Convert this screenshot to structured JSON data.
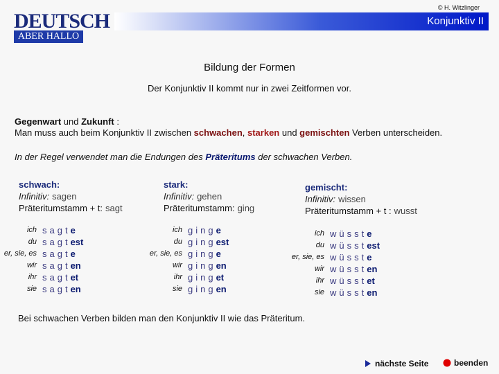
{
  "header": {
    "copyright": "© H. Witzlinger",
    "logo_title": "DEUTSCH",
    "logo_subtitle": "ABER HALLO",
    "title": "Konjunktiv II"
  },
  "heading": "Bildung der Formen",
  "intro": "Der Konjunktiv II kommt nur in zwei Zeitformen vor.",
  "section": {
    "line1": [
      "Gegenwart",
      " und ",
      "Zukunft",
      " :"
    ],
    "line2": [
      "Man muss auch beim Konjunktiv II zwischen ",
      "schwachen",
      ", ",
      "starken",
      " und ",
      "gemischten",
      " Verben unterscheiden."
    ]
  },
  "rule": [
    "In der Regel verwendet man die Endungen des ",
    "Präteritums",
    " der schwachen Verben."
  ],
  "columns": [
    {
      "title": "schwach:",
      "infinitive_label": "Infinitiv:",
      "infinitive": "sagen",
      "stem_label": "Präteritumstamm + t:",
      "stem": "sagt",
      "pronouns": [
        "ich",
        "du",
        "er, sie, es",
        "wir",
        "ihr",
        "sie"
      ],
      "table_stem": "sagt",
      "endings": [
        "e",
        "est",
        "e",
        "en",
        "et",
        "en"
      ]
    },
    {
      "title": "stark:",
      "infinitive_label": "Infinitiv:",
      "infinitive": "gehen",
      "stem_label": "Präteritumstamm:",
      "stem": "ging",
      "pronouns": [
        "ich",
        "du",
        "er, sie, es",
        "wir",
        "ihr",
        "sie"
      ],
      "table_stem": "ging",
      "endings": [
        "e",
        "est",
        "e",
        "en",
        "et",
        "en"
      ]
    },
    {
      "title": "gemischt:",
      "infinitive_label": "Infinitiv:",
      "infinitive": "wissen",
      "stem_label": "Präteritumstamm + t :",
      "stem": "wusst",
      "pronouns": [
        "ich",
        "du",
        "er, sie, es",
        "wir",
        "ihr",
        "sie"
      ],
      "table_stem": "wüsst",
      "endings": [
        "e",
        "est",
        "e",
        "en",
        "et",
        "en"
      ]
    }
  ],
  "note": "Bei schwachen Verben bilden man den Konjunktiv II wie das Präteritum.",
  "nav": {
    "next": "nächste Seite",
    "quit": "beenden"
  }
}
